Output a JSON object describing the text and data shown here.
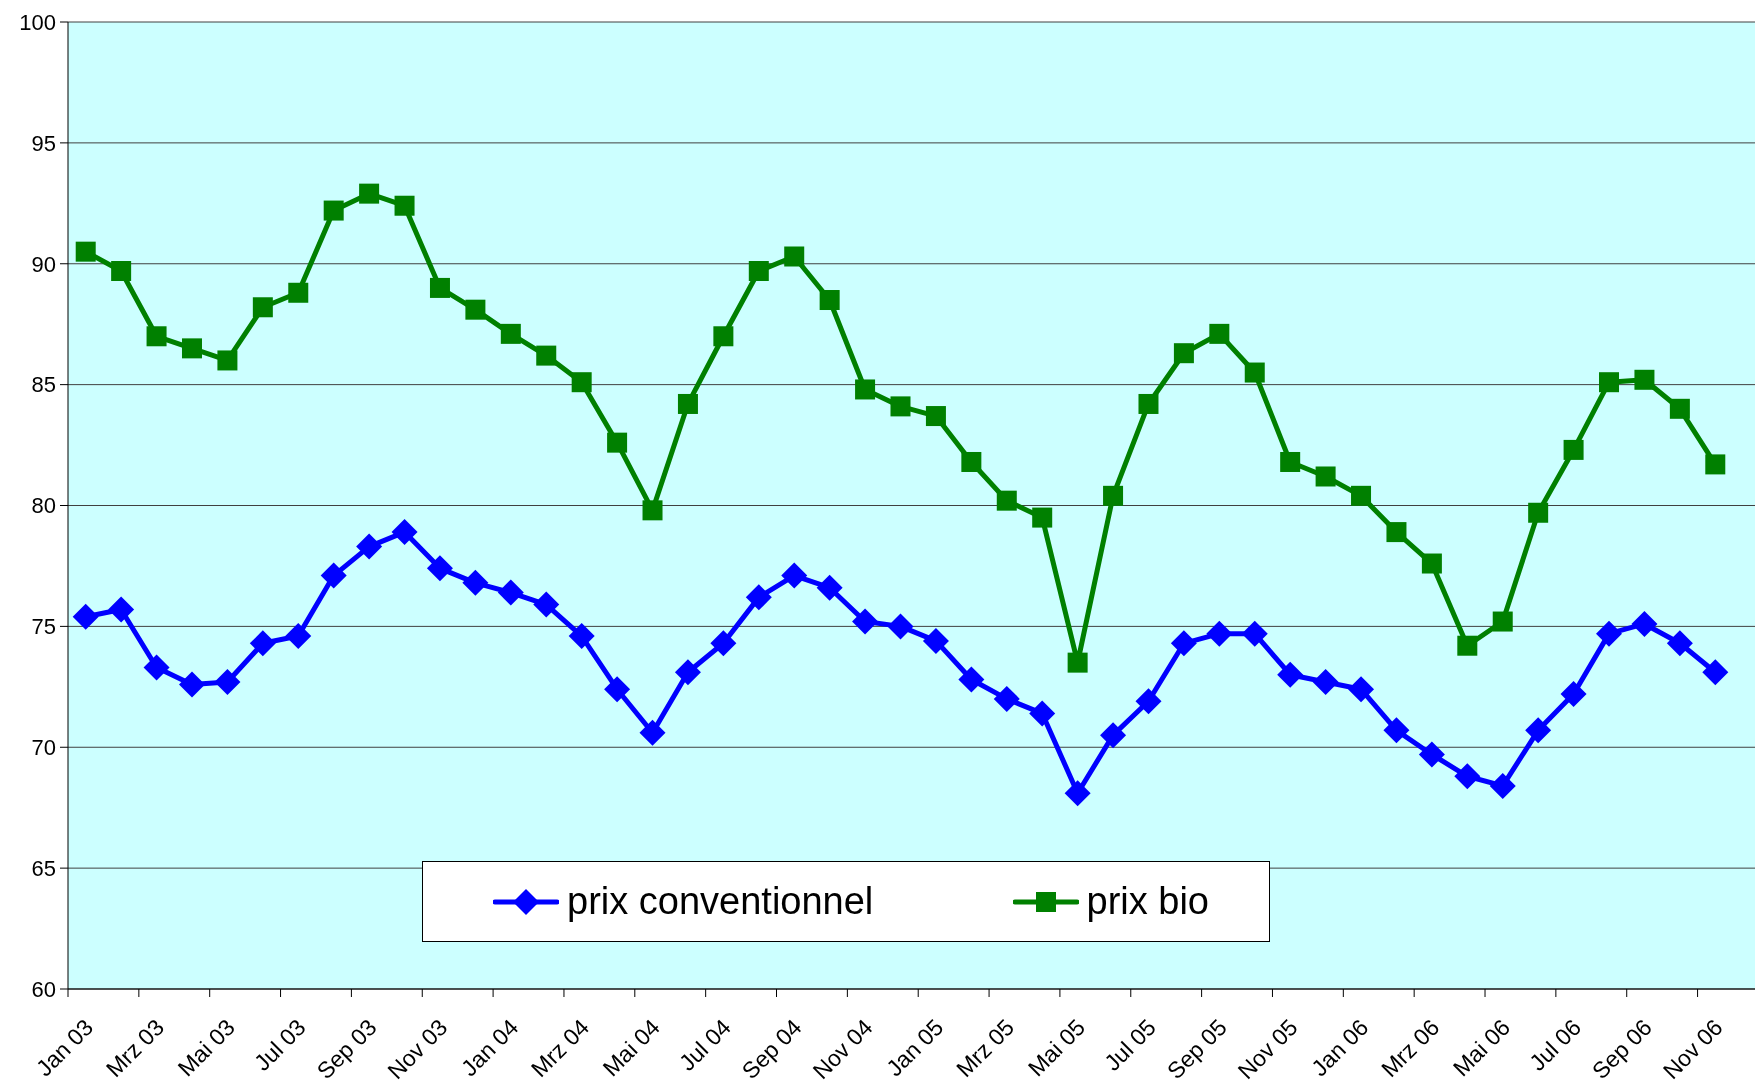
{
  "chart_data": {
    "type": "line",
    "categories": [
      "Jan 03",
      null,
      "Mrz 03",
      null,
      "Mai 03",
      null,
      "Jul 03",
      null,
      "Sep 03",
      null,
      "Nov 03",
      null,
      "Jan 04",
      null,
      "Mrz 04",
      null,
      "Mai 04",
      null,
      "Jul 04",
      null,
      "Sep 04",
      null,
      "Nov 04",
      null,
      "Jan 05",
      null,
      "Mrz 05",
      null,
      "Mai 05",
      null,
      "Jul 05",
      null,
      "Sep 05",
      null,
      "Nov 05",
      null,
      "Jan 06",
      null,
      "Mrz 06",
      null,
      "Mai 06",
      null,
      "Jul 06",
      null,
      "Sep 06",
      null,
      "Nov 06"
    ],
    "series": [
      {
        "name": "prix conventionnel",
        "color": "#0000ff",
        "marker": "diamond",
        "values": [
          75.4,
          75.7,
          73.3,
          72.6,
          72.7,
          74.3,
          74.6,
          77.1,
          78.3,
          78.9,
          77.4,
          76.8,
          76.4,
          75.9,
          74.6,
          72.4,
          70.6,
          73.1,
          74.3,
          76.2,
          77.1,
          76.6,
          75.2,
          75.0,
          74.4,
          72.8,
          72.0,
          71.4,
          68.1,
          70.5,
          71.9,
          74.3,
          74.7,
          74.7,
          73.0,
          72.7,
          72.4,
          70.7,
          69.7,
          68.8,
          68.4,
          70.7,
          72.2,
          74.7,
          75.1,
          74.3,
          73.1
        ]
      },
      {
        "name": "prix bio",
        "color": "#008000",
        "marker": "square",
        "values": [
          90.5,
          89.7,
          87.0,
          86.5,
          86.0,
          88.2,
          88.8,
          92.2,
          92.9,
          92.4,
          89.0,
          88.1,
          87.1,
          86.2,
          85.1,
          82.6,
          79.8,
          84.2,
          87.0,
          89.7,
          90.3,
          88.5,
          84.8,
          84.1,
          83.7,
          81.8,
          80.2,
          79.5,
          73.5,
          80.4,
          84.2,
          86.3,
          87.1,
          85.5,
          81.8,
          81.2,
          80.4,
          78.9,
          77.6,
          74.2,
          75.2,
          79.7,
          82.3,
          85.1,
          85.2,
          84.0,
          81.7
        ]
      }
    ],
    "ylim": [
      60,
      100
    ],
    "yticks": [
      60,
      65,
      70,
      75,
      80,
      85,
      90,
      95,
      100
    ],
    "grid": "y",
    "legend": "bottom",
    "line_style": "solid"
  }
}
